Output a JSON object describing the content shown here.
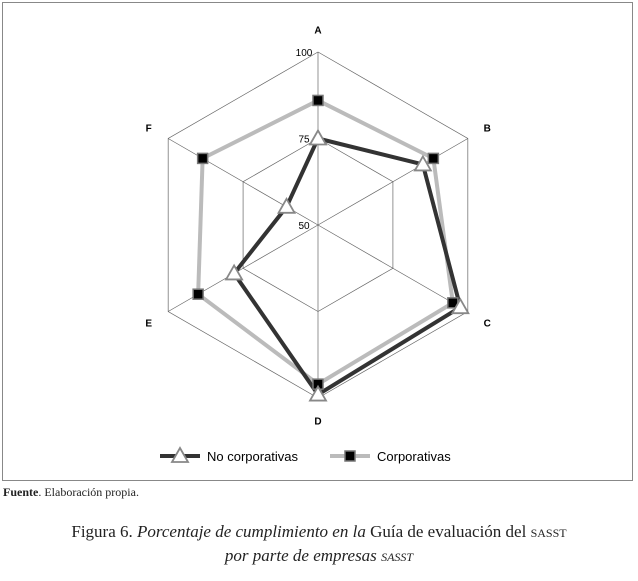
{
  "chart_data": {
    "type": "radar",
    "categories": [
      "A",
      "B",
      "C",
      "D",
      "E",
      "F"
    ],
    "tick_labels": [
      "50",
      "75",
      "100"
    ],
    "rlim": [
      50,
      100
    ],
    "grid": true,
    "legend_position": "bottom",
    "series": [
      {
        "name": "No corporativas",
        "values": [
          75,
          85,
          97.5,
          99,
          78,
          60.5
        ],
        "color": "#333333",
        "marker": "triangle"
      },
      {
        "name": "Corporativas",
        "values": [
          86,
          88.5,
          95,
          96,
          90,
          88.5
        ],
        "color": "#bbbbbb",
        "marker": "square"
      }
    ]
  },
  "source": {
    "label": "Fuente",
    "text": ". Elaboración propia."
  },
  "caption": {
    "prefix": "Figura 6. ",
    "italic1": "Porcentaje de cumplimiento en la",
    "normal": " Guía de evaluación del ",
    "sc1": "SASST",
    "italic2": "por parte de empresas ",
    "sc2": "SASST"
  }
}
